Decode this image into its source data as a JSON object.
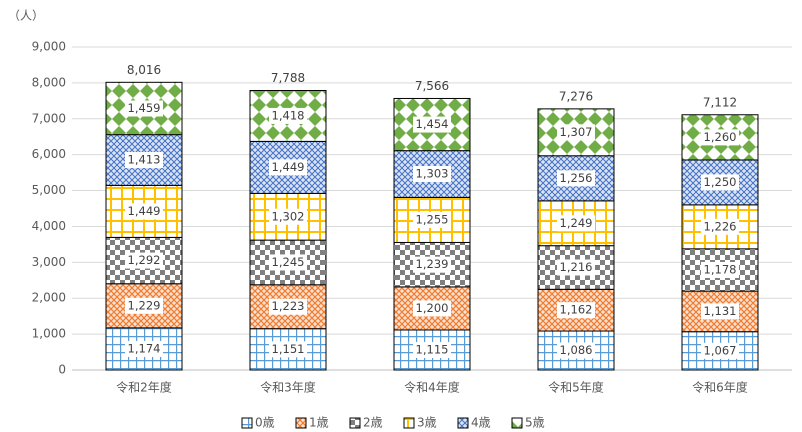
{
  "chart_data": {
    "type": "stacked_bar",
    "y_unit_label": "（人）",
    "categories": [
      "令和2年度",
      "令和3年度",
      "令和4年度",
      "令和5年度",
      "令和6年度"
    ],
    "series": [
      {
        "name": "0歳",
        "color": "#5b9bd5",
        "values": [
          1174,
          1151,
          1115,
          1086,
          1067
        ],
        "value_labels": [
          "1,174",
          "1,151",
          "1,115",
          "1,086",
          "1,067"
        ]
      },
      {
        "name": "1歳",
        "color": "#ed7d31",
        "values": [
          1229,
          1223,
          1200,
          1162,
          1131
        ],
        "value_labels": [
          "1,229",
          "1,223",
          "1,200",
          "1,162",
          "1,131"
        ]
      },
      {
        "name": "2歳",
        "color": "#7f7f7f",
        "values": [
          1292,
          1245,
          1239,
          1216,
          1178
        ],
        "value_labels": [
          "1,292",
          "1,245",
          "1,239",
          "1,216",
          "1,178"
        ]
      },
      {
        "name": "3歳",
        "color": "#ffc000",
        "values": [
          1449,
          1302,
          1255,
          1249,
          1226
        ],
        "value_labels": [
          "1,449",
          "1,302",
          "1,255",
          "1,249",
          "1,226"
        ]
      },
      {
        "name": "4歳",
        "color": "#4472c4",
        "values": [
          1413,
          1449,
          1303,
          1256,
          1250
        ],
        "value_labels": [
          "1,413",
          "1,449",
          "1,303",
          "1,256",
          "1,250"
        ]
      },
      {
        "name": "5歳",
        "color": "#70ad47",
        "values": [
          1459,
          1418,
          1454,
          1307,
          1260
        ],
        "value_labels": [
          "1,459",
          "1,418",
          "1,454",
          "1,307",
          "1,260"
        ]
      }
    ],
    "totals": {
      "values": [
        8016,
        7788,
        7566,
        7276,
        7112
      ],
      "value_labels": [
        "8,016",
        "7,788",
        "7,566",
        "7,276",
        "7,112"
      ]
    },
    "ylim": [
      0,
      9000
    ],
    "yticks": [
      0,
      {
        "value": 1000,
        "label": "1,000"
      },
      {
        "value": 2000,
        "label": "2,000"
      },
      {
        "value": 3000,
        "label": "3,000"
      },
      {
        "value": 4000,
        "label": "4,000"
      },
      {
        "value": 5000,
        "label": "5,000"
      },
      {
        "value": 6000,
        "label": "6,000"
      },
      {
        "value": 7000,
        "label": "7,000"
      },
      {
        "value": 8000,
        "label": "8,000"
      },
      {
        "value": 9000,
        "label": "9,000"
      }
    ],
    "grid": true,
    "legend": "bottom"
  }
}
